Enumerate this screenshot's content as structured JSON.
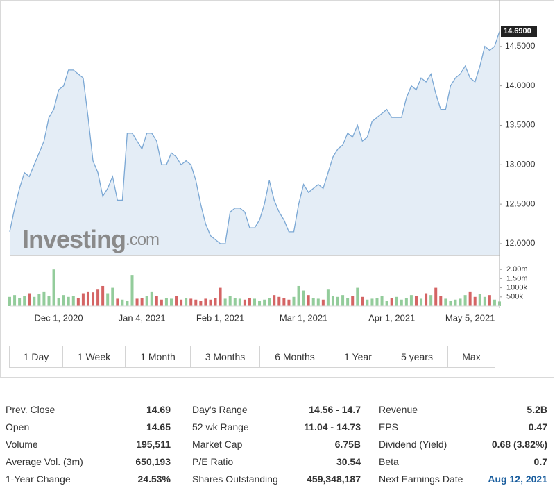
{
  "watermark": {
    "brand": "Investing",
    "suffix": ".com"
  },
  "chart_data": [
    {
      "type": "line",
      "color": "#7aa7d4",
      "fill": "#e4edf6",
      "categories": [
        null,
        null,
        null,
        null,
        null,
        null,
        null,
        null,
        null,
        null,
        "Dec 1, 2020",
        null,
        null,
        null,
        null,
        null,
        null,
        null,
        null,
        null,
        null,
        null,
        null,
        null,
        null,
        null,
        null,
        "Jan 4, 2021",
        null,
        null,
        null,
        null,
        null,
        null,
        null,
        null,
        null,
        null,
        null,
        null,
        null,
        null,
        null,
        "Feb 1, 2021",
        null,
        null,
        null,
        null,
        null,
        null,
        null,
        null,
        null,
        null,
        null,
        null,
        null,
        null,
        null,
        null,
        "Mar 1, 2021",
        null,
        null,
        null,
        null,
        null,
        null,
        null,
        null,
        null,
        null,
        null,
        null,
        null,
        null,
        null,
        null,
        null,
        "Apr 1, 2021",
        null,
        null,
        null,
        null,
        null,
        null,
        null,
        null,
        null,
        null,
        null,
        null,
        null,
        null,
        null,
        "May 5, 2021",
        null,
        null,
        null,
        null,
        null,
        null
      ],
      "values": [
        12.15,
        12.45,
        12.7,
        12.9,
        12.85,
        13.0,
        13.15,
        13.3,
        13.6,
        13.7,
        13.95,
        14.0,
        14.2,
        14.2,
        14.15,
        14.1,
        13.6,
        13.05,
        12.9,
        12.6,
        12.7,
        12.85,
        12.55,
        12.55,
        13.4,
        13.4,
        13.3,
        13.2,
        13.4,
        13.4,
        13.3,
        13.0,
        13.0,
        13.15,
        13.1,
        13.0,
        13.05,
        13.0,
        12.8,
        12.5,
        12.25,
        12.1,
        12.05,
        12.0,
        12.0,
        12.4,
        12.45,
        12.45,
        12.4,
        12.2,
        12.2,
        12.3,
        12.5,
        12.8,
        12.55,
        12.4,
        12.3,
        12.15,
        12.15,
        12.5,
        12.75,
        12.65,
        12.7,
        12.75,
        12.7,
        12.9,
        13.1,
        13.2,
        13.25,
        13.4,
        13.35,
        13.5,
        13.3,
        13.35,
        13.55,
        13.6,
        13.65,
        13.7,
        13.6,
        13.6,
        13.6,
        13.85,
        14.0,
        13.95,
        14.1,
        14.05,
        14.15,
        13.9,
        13.7,
        13.7,
        14.0,
        14.1,
        14.15,
        14.25,
        14.1,
        14.05,
        14.25,
        14.5,
        14.45,
        14.5,
        14.69
      ],
      "price_tag": "14.6900",
      "ylim": [
        11.85,
        15.0
      ],
      "yticks": [
        {
          "value": 12,
          "label": "12.0000"
        },
        {
          "value": 12.5,
          "label": "12.5000"
        },
        {
          "value": 13,
          "label": "13.0000"
        },
        {
          "value": 13.5,
          "label": "13.5000"
        },
        {
          "value": 14,
          "label": "14.0000"
        },
        {
          "value": 14.5,
          "label": "14.5000"
        }
      ]
    },
    {
      "type": "bar",
      "up_color": "#93cc9b",
      "down_color": "#d46464",
      "values": [
        500000,
        600000,
        450000,
        550000,
        700000,
        500000,
        650000,
        800000,
        550000,
        2000000,
        450000,
        600000,
        500000,
        550000,
        450000,
        700000,
        800000,
        750000,
        900000,
        1100000,
        700000,
        1000000,
        400000,
        350000,
        300000,
        1700000,
        400000,
        450000,
        550000,
        800000,
        550000,
        350000,
        450000,
        400000,
        550000,
        350000,
        450000,
        400000,
        350000,
        300000,
        400000,
        350000,
        450000,
        1000000,
        400000,
        550000,
        450000,
        400000,
        350000,
        450000,
        400000,
        300000,
        350000,
        450000,
        600000,
        500000,
        450000,
        350000,
        500000,
        1100000,
        850000,
        600000,
        450000,
        400000,
        350000,
        900000,
        550000,
        500000,
        600000,
        450000,
        550000,
        1000000,
        500000,
        350000,
        400000,
        450000,
        550000,
        300000,
        450000,
        500000,
        350000,
        450000,
        600000,
        550000,
        400000,
        700000,
        600000,
        1000000,
        550000,
        400000,
        300000,
        350000,
        400000,
        600000,
        800000,
        500000,
        650000,
        500000,
        600000,
        350000,
        250000
      ],
      "ylim": [
        0,
        2500000
      ],
      "yticks": [
        {
          "value": 2000000,
          "label": "2.00m"
        },
        {
          "value": 1500000,
          "label": "1.50m"
        },
        {
          "value": 1000000,
          "label": "1000k"
        },
        {
          "value": 500000,
          "label": "500k"
        }
      ]
    }
  ],
  "range_buttons": [
    "1 Day",
    "1 Week",
    "1 Month",
    "3 Months",
    "6 Months",
    "1 Year",
    "5 years",
    "Max"
  ],
  "stats": [
    [
      {
        "label": "Prev. Close",
        "value": "14.69"
      },
      {
        "label": "Open",
        "value": "14.65"
      },
      {
        "label": "Volume",
        "value": "195,511"
      },
      {
        "label": "Average Vol. (3m)",
        "value": "650,193"
      },
      {
        "label": "1-Year Change",
        "value": "24.53%"
      }
    ],
    [
      {
        "label": "Day's Range",
        "value": "14.56 - 14.7"
      },
      {
        "label": "52 wk Range",
        "value": "11.04 - 14.73"
      },
      {
        "label": "Market Cap",
        "value": "6.75B"
      },
      {
        "label": "P/E Ratio",
        "value": "30.54"
      },
      {
        "label": "Shares Outstanding",
        "value": "459,348,187"
      }
    ],
    [
      {
        "label": "Revenue",
        "value": "5.2B"
      },
      {
        "label": "EPS",
        "value": "0.47"
      },
      {
        "label": "Dividend (Yield)",
        "value": "0.68 (3.82%)"
      },
      {
        "label": "Beta",
        "value": "0.7"
      },
      {
        "label": "Next Earnings Date",
        "value": "Aug 12, 2021"
      }
    ]
  ]
}
